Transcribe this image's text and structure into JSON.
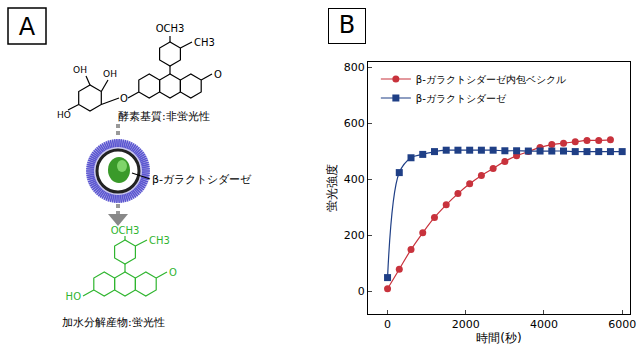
{
  "diagram": {
    "label": "A",
    "substrate": {
      "groups": [
        "OCH3",
        "CH3",
        "O",
        "O",
        "OH",
        "OH",
        "HO"
      ],
      "caption": "酵素基質:非蛍光性"
    },
    "enzyme": "β-ガラクトシダーゼ",
    "product": {
      "groups": [
        "OCH3",
        "CH3",
        "HO",
        "O"
      ],
      "caption": "加水分解産物:蛍光性"
    }
  },
  "chart_data": {
    "type": "line",
    "annotations": [
      {
        "text": "B"
      }
    ],
    "x_label": "時間(秒)",
    "y_label": "蛍光強度",
    "x": [
      0,
      300,
      600,
      900,
      1200,
      1500,
      1800,
      2100,
      2400,
      2700,
      3000,
      3300,
      3600,
      3900,
      4200,
      4500,
      4800,
      5100,
      5400,
      5700,
      6000
    ],
    "series": [
      {
        "name": "β-ガラクトシダーゼ内包ベシクル",
        "color": "#c8323c",
        "marker": "circle",
        "values": [
          10,
          80,
          150,
          210,
          265,
          310,
          350,
          385,
          415,
          440,
          465,
          485,
          500,
          515,
          525,
          530,
          535,
          540,
          540,
          542,
          null
        ]
      },
      {
        "name": "β-ガラクトシダーゼ",
        "color": "#1f3f86",
        "marker": "square",
        "values": [
          50,
          425,
          478,
          490,
          500,
          505,
          505,
          505,
          505,
          505,
          503,
          503,
          502,
          502,
          502,
          502,
          500,
          500,
          500,
          500,
          500
        ]
      }
    ],
    "xlim": [
      -500,
      6200
    ],
    "xticks": [
      0,
      2000,
      4000,
      6000
    ],
    "ylim": [
      -80,
      820
    ],
    "yticks": [
      0,
      200,
      400,
      600,
      800
    ],
    "grid": false,
    "legend": "top left"
  }
}
